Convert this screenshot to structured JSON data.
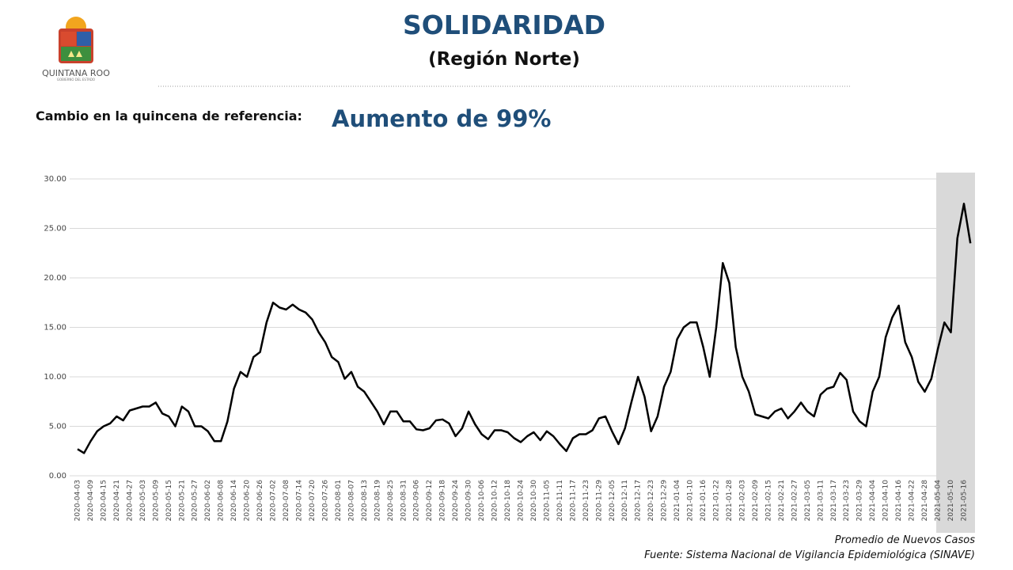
{
  "header": {
    "logo_text": "QUINTANA ROO",
    "logo_subtext": "GOBIERNO DEL ESTADO",
    "title": "SOLIDARIDAD",
    "subtitle": "(Región Norte)"
  },
  "summary": {
    "label": "Cambio en la quincena de referencia:",
    "value_text": "Aumento de 99%"
  },
  "chart_data": {
    "type": "line",
    "legend_text": "Promedio de Nuevos Casos",
    "source": "Fuente: Sistema Nacional de Vigilancia Epidemiológica (SINAVE)",
    "grid": true,
    "shaded_range": [
      "2021-05-04",
      "2021-05-19"
    ],
    "ylim": [
      0,
      30
    ],
    "yticks": [
      {
        "value": 0,
        "label": "0.00"
      },
      {
        "value": 5,
        "label": "5.00"
      },
      {
        "value": 10,
        "label": "10.00"
      },
      {
        "value": 15,
        "label": "15.00"
      },
      {
        "value": 20,
        "label": "20.00"
      },
      {
        "value": 25,
        "label": "25.00"
      },
      {
        "value": 30,
        "label": "30.00"
      }
    ],
    "xticks": [
      "2020-04-03",
      "2020-04-09",
      "2020-04-15",
      "2020-04-21",
      "2020-04-27",
      "2020-05-03",
      "2020-05-09",
      "2020-05-15",
      "2020-05-21",
      "2020-05-27",
      "2020-06-02",
      "2020-06-08",
      "2020-06-14",
      "2020-06-20",
      "2020-06-26",
      "2020-07-02",
      "2020-07-08",
      "2020-07-14",
      "2020-07-20",
      "2020-07-26",
      "2020-08-01",
      "2020-08-07",
      "2020-08-13",
      "2020-08-19",
      "2020-08-25",
      "2020-08-31",
      "2020-09-06",
      "2020-09-12",
      "2020-09-18",
      "2020-09-24",
      "2020-09-30",
      "2020-10-06",
      "2020-10-12",
      "2020-10-18",
      "2020-10-24",
      "2020-10-30",
      "2020-11-05",
      "2020-11-11",
      "2020-11-17",
      "2020-11-23",
      "2020-11-29",
      "2020-12-05",
      "2020-12-11",
      "2020-12-17",
      "2020-12-23",
      "2020-12-29",
      "2021-01-04",
      "2021-01-10",
      "2021-01-16",
      "2021-01-22",
      "2021-01-28",
      "2021-02-03",
      "2021-02-09",
      "2021-02-15",
      "2021-02-21",
      "2021-02-27",
      "2021-03-05",
      "2021-03-11",
      "2021-03-17",
      "2021-03-23",
      "2021-03-29",
      "2021-04-04",
      "2021-04-10",
      "2021-04-16",
      "2021-04-22",
      "2021-04-28",
      "2021-05-04",
      "2021-05-10",
      "2021-05-16"
    ],
    "x": [
      "2020-04-03",
      "2020-04-06",
      "2020-04-09",
      "2020-04-12",
      "2020-04-15",
      "2020-04-18",
      "2020-04-21",
      "2020-04-24",
      "2020-04-27",
      "2020-04-30",
      "2020-05-03",
      "2020-05-06",
      "2020-05-09",
      "2020-05-12",
      "2020-05-15",
      "2020-05-18",
      "2020-05-21",
      "2020-05-24",
      "2020-05-27",
      "2020-05-30",
      "2020-06-02",
      "2020-06-05",
      "2020-06-08",
      "2020-06-11",
      "2020-06-14",
      "2020-06-17",
      "2020-06-20",
      "2020-06-23",
      "2020-06-26",
      "2020-06-29",
      "2020-07-02",
      "2020-07-05",
      "2020-07-08",
      "2020-07-11",
      "2020-07-14",
      "2020-07-17",
      "2020-07-20",
      "2020-07-23",
      "2020-07-26",
      "2020-07-29",
      "2020-08-01",
      "2020-08-04",
      "2020-08-07",
      "2020-08-10",
      "2020-08-13",
      "2020-08-16",
      "2020-08-19",
      "2020-08-22",
      "2020-08-25",
      "2020-08-28",
      "2020-08-31",
      "2020-09-03",
      "2020-09-06",
      "2020-09-09",
      "2020-09-12",
      "2020-09-15",
      "2020-09-18",
      "2020-09-21",
      "2020-09-24",
      "2020-09-27",
      "2020-09-30",
      "2020-10-03",
      "2020-10-06",
      "2020-10-09",
      "2020-10-12",
      "2020-10-15",
      "2020-10-18",
      "2020-10-21",
      "2020-10-24",
      "2020-10-27",
      "2020-10-30",
      "2020-11-02",
      "2020-11-05",
      "2020-11-08",
      "2020-11-11",
      "2020-11-14",
      "2020-11-17",
      "2020-11-20",
      "2020-11-23",
      "2020-11-26",
      "2020-11-29",
      "2020-12-02",
      "2020-12-05",
      "2020-12-08",
      "2020-12-11",
      "2020-12-14",
      "2020-12-17",
      "2020-12-20",
      "2020-12-23",
      "2020-12-26",
      "2020-12-29",
      "2021-01-01",
      "2021-01-04",
      "2021-01-07",
      "2021-01-10",
      "2021-01-13",
      "2021-01-16",
      "2021-01-19",
      "2021-01-22",
      "2021-01-25",
      "2021-01-28",
      "2021-01-31",
      "2021-02-03",
      "2021-02-06",
      "2021-02-09",
      "2021-02-12",
      "2021-02-15",
      "2021-02-18",
      "2021-02-21",
      "2021-02-24",
      "2021-02-27",
      "2021-03-02",
      "2021-03-05",
      "2021-03-08",
      "2021-03-11",
      "2021-03-14",
      "2021-03-17",
      "2021-03-20",
      "2021-03-23",
      "2021-03-26",
      "2021-03-29",
      "2021-04-01",
      "2021-04-04",
      "2021-04-07",
      "2021-04-10",
      "2021-04-13",
      "2021-04-16",
      "2021-04-19",
      "2021-04-22",
      "2021-04-25",
      "2021-04-28",
      "2021-05-01",
      "2021-05-04",
      "2021-05-07",
      "2021-05-10",
      "2021-05-13",
      "2021-05-16",
      "2021-05-19"
    ],
    "series": [
      {
        "name": "Promedio de Nuevos Casos",
        "color": "#000000",
        "values": [
          2.7,
          2.3,
          3.5,
          4.5,
          5.0,
          5.3,
          6.0,
          5.6,
          6.6,
          6.8,
          7.0,
          7.0,
          7.4,
          6.3,
          6.0,
          5.0,
          7.0,
          6.5,
          5.0,
          5.0,
          4.5,
          3.5,
          3.5,
          5.5,
          8.8,
          10.5,
          10.0,
          12.0,
          12.5,
          15.5,
          17.5,
          17.0,
          16.8,
          17.3,
          16.8,
          16.5,
          15.8,
          14.5,
          13.5,
          12.0,
          11.5,
          9.8,
          10.5,
          9.0,
          8.5,
          7.5,
          6.5,
          5.2,
          6.5,
          6.5,
          5.5,
          5.5,
          4.7,
          4.6,
          4.8,
          5.6,
          5.7,
          5.3,
          4.0,
          4.8,
          6.5,
          5.2,
          4.2,
          3.7,
          4.6,
          4.6,
          4.4,
          3.8,
          3.4,
          4.0,
          4.4,
          3.6,
          4.5,
          4.0,
          3.2,
          2.5,
          3.8,
          4.2,
          4.2,
          4.6,
          5.8,
          6.0,
          4.5,
          3.2,
          4.8,
          7.5,
          10.0,
          8.0,
          4.5,
          6.0,
          9.0,
          10.5,
          13.8,
          15.0,
          15.5,
          15.5,
          13.0,
          10.0,
          15.0,
          21.5,
          19.5,
          13.0,
          10.0,
          8.5,
          6.2,
          6.0,
          5.8,
          6.5,
          6.8,
          5.8,
          6.5,
          7.4,
          6.5,
          6.0,
          8.2,
          8.8,
          9.0,
          10.4,
          9.7,
          6.5,
          5.5,
          5.0,
          8.5,
          10.0,
          14.0,
          16.0,
          17.2,
          13.5,
          12.0,
          9.5,
          8.5,
          9.8,
          12.8,
          15.5,
          14.5,
          24.0,
          27.5,
          23.5
        ]
      }
    ]
  }
}
